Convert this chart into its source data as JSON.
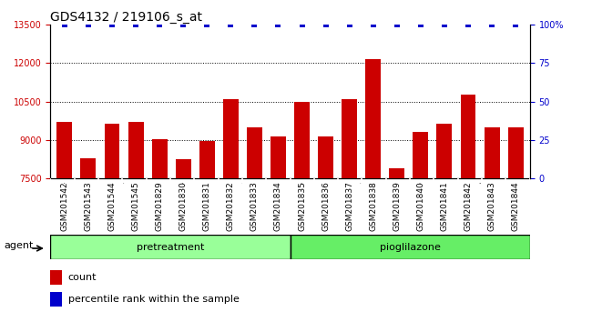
{
  "title": "GDS4132 / 219106_s_at",
  "categories": [
    "GSM201542",
    "GSM201543",
    "GSM201544",
    "GSM201545",
    "GSM201829",
    "GSM201830",
    "GSM201831",
    "GSM201832",
    "GSM201833",
    "GSM201834",
    "GSM201835",
    "GSM201836",
    "GSM201837",
    "GSM201838",
    "GSM201839",
    "GSM201840",
    "GSM201841",
    "GSM201842",
    "GSM201843",
    "GSM201844"
  ],
  "bar_values": [
    9700,
    8300,
    9650,
    9700,
    9050,
    8250,
    8950,
    10600,
    9500,
    9150,
    10500,
    9150,
    10600,
    12150,
    7900,
    9300,
    9650,
    10750,
    9500,
    9500
  ],
  "bar_color": "#cc0000",
  "percentile_color": "#0000cc",
  "ylim_left": [
    7500,
    13500
  ],
  "ylim_right": [
    0,
    100
  ],
  "yticks_left": [
    7500,
    9000,
    10500,
    12000,
    13500
  ],
  "yticks_right": [
    0,
    25,
    50,
    75,
    100
  ],
  "group1_display": "pretreatment",
  "group2_display": "pioglilazone",
  "agent_label": "agent",
  "legend_count_label": "count",
  "legend_percentile_label": "percentile rank within the sample",
  "background_color": "#ffffff",
  "plot_bg_color": "#ffffff",
  "xtick_bg_color": "#cccccc",
  "group1_color": "#99ff99",
  "group2_color": "#66ee66",
  "title_fontsize": 10,
  "tick_fontsize": 7,
  "group_fontsize": 8,
  "legend_fontsize": 8
}
